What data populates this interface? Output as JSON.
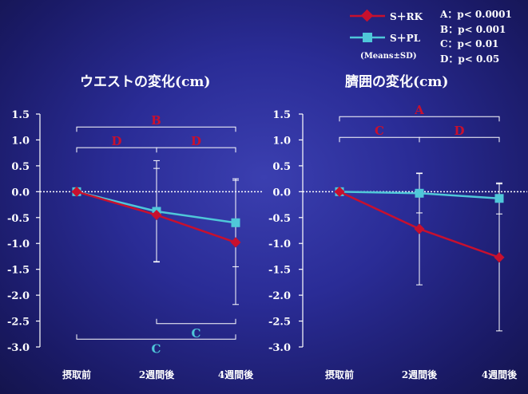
{
  "legend": {
    "series": [
      {
        "name": "S＋RK",
        "color": "#c8102e",
        "marker": "diamond"
      },
      {
        "name": "S＋PL",
        "color": "#4fc7d9",
        "marker": "square"
      }
    ],
    "note": "(Means±SD)"
  },
  "significance_key": [
    "A：p< 0.0001",
    "B：p< 0.001",
    "C：p< 0.01",
    "D：p< 0.05"
  ],
  "chart_data": [
    {
      "type": "line",
      "title": "ウエストの変化(cm)",
      "categories": [
        "摂取前",
        "2週間後",
        "4週間後"
      ],
      "ylim": [
        -3.0,
        1.5
      ],
      "yticks": [
        "1.5",
        "1.0",
        "0.5",
        "0.0",
        "-0.5",
        "-1.0",
        "-1.5",
        "-2.0",
        "-2.5",
        "-3.0"
      ],
      "series": [
        {
          "name": "S＋RK",
          "color": "#c8102e",
          "values": [
            0,
            -0.45,
            -0.98
          ],
          "sd": [
            0,
            0.9,
            1.2
          ]
        },
        {
          "name": "S＋PL",
          "color": "#4fc7d9",
          "values": [
            0,
            -0.38,
            -0.6
          ],
          "sd": [
            0,
            0.98,
            0.85
          ]
        }
      ],
      "annotations": [
        {
          "label": "B",
          "from": 0,
          "to": 2,
          "y": 1.25,
          "side": "top",
          "color": "red"
        },
        {
          "label": "D",
          "from": 0,
          "to": 1,
          "y": 0.85,
          "side": "top",
          "color": "red"
        },
        {
          "label": "D",
          "from": 1,
          "to": 2,
          "y": 0.85,
          "side": "top",
          "color": "red"
        },
        {
          "label": "C",
          "from": 1,
          "to": 2,
          "y": -2.55,
          "side": "bottom",
          "color": "cyan"
        },
        {
          "label": "C",
          "from": 0,
          "to": 2,
          "y": -2.85,
          "side": "bottom",
          "color": "cyan"
        }
      ]
    },
    {
      "type": "line",
      "title": "臍囲の変化(cm)",
      "categories": [
        "摂取前",
        "2週間後",
        "4週間後"
      ],
      "ylim": [
        -3.0,
        1.5
      ],
      "yticks": [
        "1.5",
        "1.0",
        "0.5",
        "0.0",
        "-0.5",
        "-1.0",
        "-1.5",
        "-2.0",
        "-2.5",
        "-3.0"
      ],
      "series": [
        {
          "name": "S＋RK",
          "color": "#c8102e",
          "values": [
            0,
            -0.72,
            -1.27
          ],
          "sd": [
            0,
            1.08,
            1.42
          ]
        },
        {
          "name": "S＋PL",
          "color": "#4fc7d9",
          "values": [
            0,
            -0.03,
            -0.13
          ],
          "sd": [
            0,
            0.38,
            0.3
          ]
        }
      ],
      "annotations": [
        {
          "label": "A",
          "from": 0,
          "to": 2,
          "y": 1.45,
          "side": "top",
          "color": "red"
        },
        {
          "label": "C",
          "from": 0,
          "to": 1,
          "y": 1.05,
          "side": "top",
          "color": "red"
        },
        {
          "label": "D",
          "from": 1,
          "to": 2,
          "y": 1.05,
          "side": "top",
          "color": "red"
        }
      ]
    }
  ]
}
